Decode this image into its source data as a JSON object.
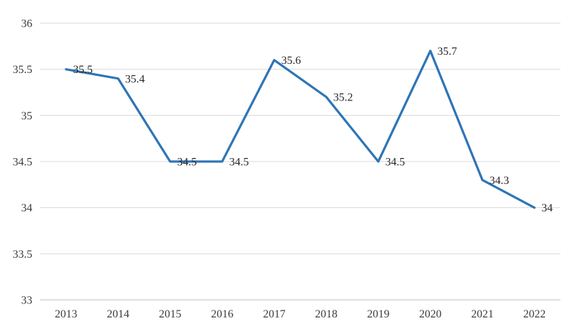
{
  "chart_data": {
    "type": "line",
    "title": "",
    "xlabel": "",
    "ylabel": "",
    "categories": [
      "2013",
      "2014",
      "2015",
      "2016",
      "2017",
      "2018",
      "2019",
      "2020",
      "2021",
      "2022"
    ],
    "series": [
      {
        "name": "series-1",
        "values": [
          35.5,
          35.4,
          34.5,
          34.5,
          35.6,
          35.2,
          34.5,
          35.7,
          34.3,
          34
        ],
        "color": "#2E75B6"
      }
    ],
    "data_labels": [
      "35.5",
      "35.4",
      "34.5",
      "34.5",
      "35.6",
      "35.2",
      "34.5",
      "35.7",
      "34.3",
      "34"
    ],
    "ylim": [
      33,
      36
    ],
    "yticks": [
      33,
      33.5,
      34,
      34.5,
      35,
      35.5,
      36
    ],
    "ytick_labels": [
      "33",
      "33.5",
      "34",
      "34.5",
      "35",
      "35.5",
      "36"
    ],
    "grid": "horizontal",
    "legend": "none",
    "markers": "none",
    "colors": {
      "line": "#2E75B6",
      "gridline": "#D9D9D9",
      "axis_line": "#BFBFBF",
      "label_text": "#262626",
      "tick_text": "#3B3B3B",
      "background": "#FFFFFF"
    }
  }
}
